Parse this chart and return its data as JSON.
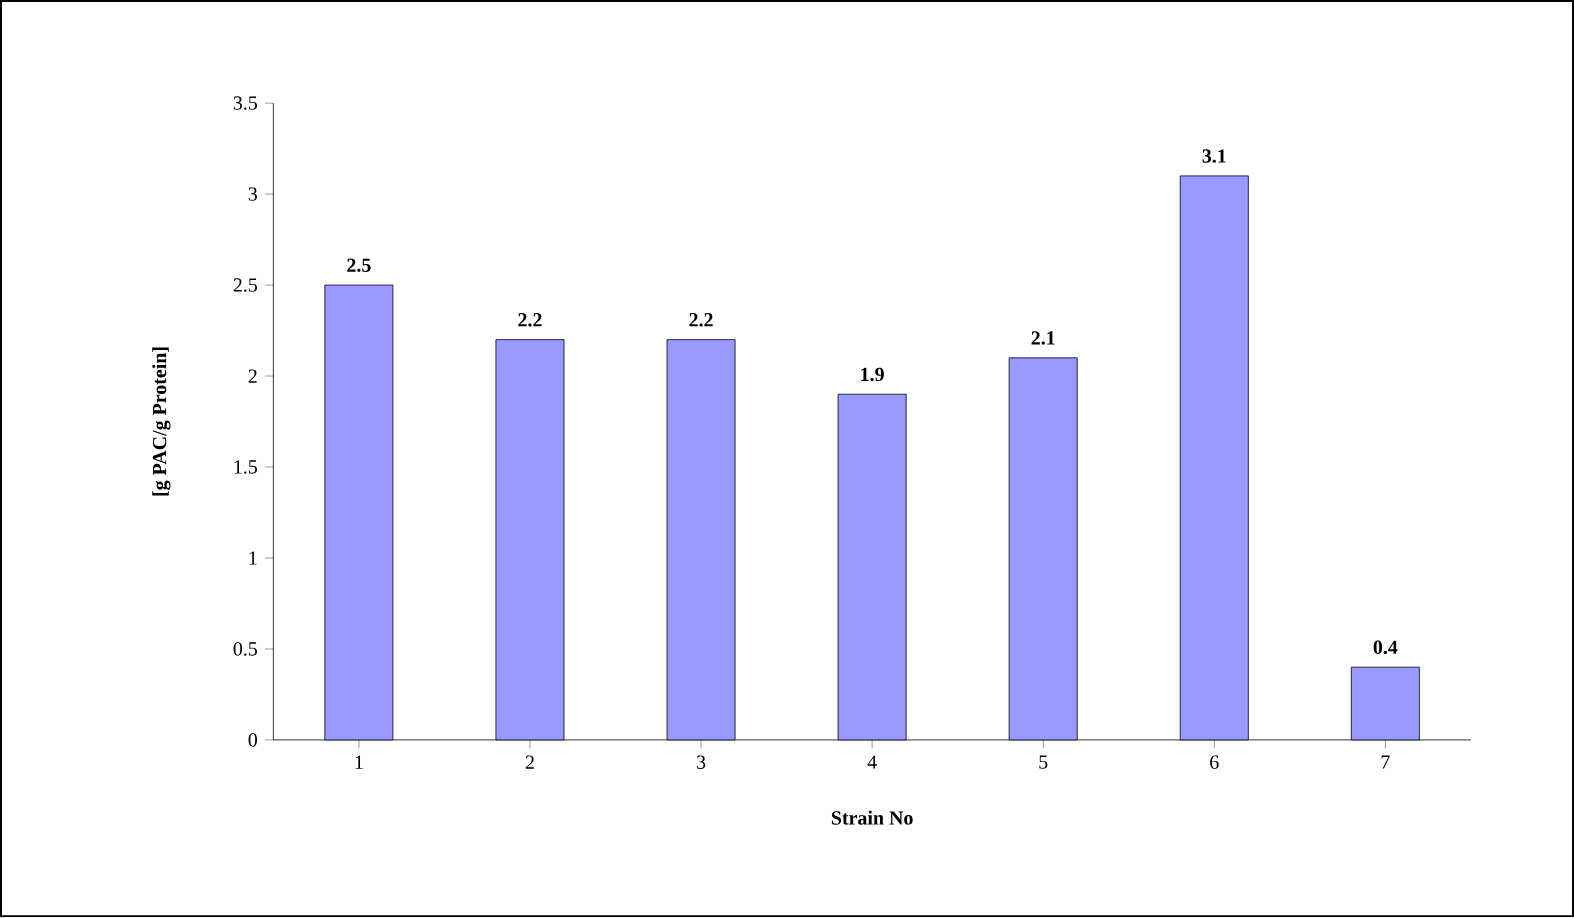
{
  "chart_data": {
    "type": "bar",
    "xlabel": "Strain No",
    "ylabel": "[g PAC/g Protein]",
    "categories": [
      "1",
      "2",
      "3",
      "4",
      "5",
      "6",
      "7"
    ],
    "values": [
      2.5,
      2.2,
      2.2,
      1.9,
      2.1,
      3.1,
      0.4
    ],
    "color": "#9999ff",
    "ylim": [
      0,
      3.5
    ],
    "yticks": [
      0,
      0.5,
      1,
      1.5,
      2,
      2.5,
      3,
      3.5
    ],
    "data_labels": true
  }
}
